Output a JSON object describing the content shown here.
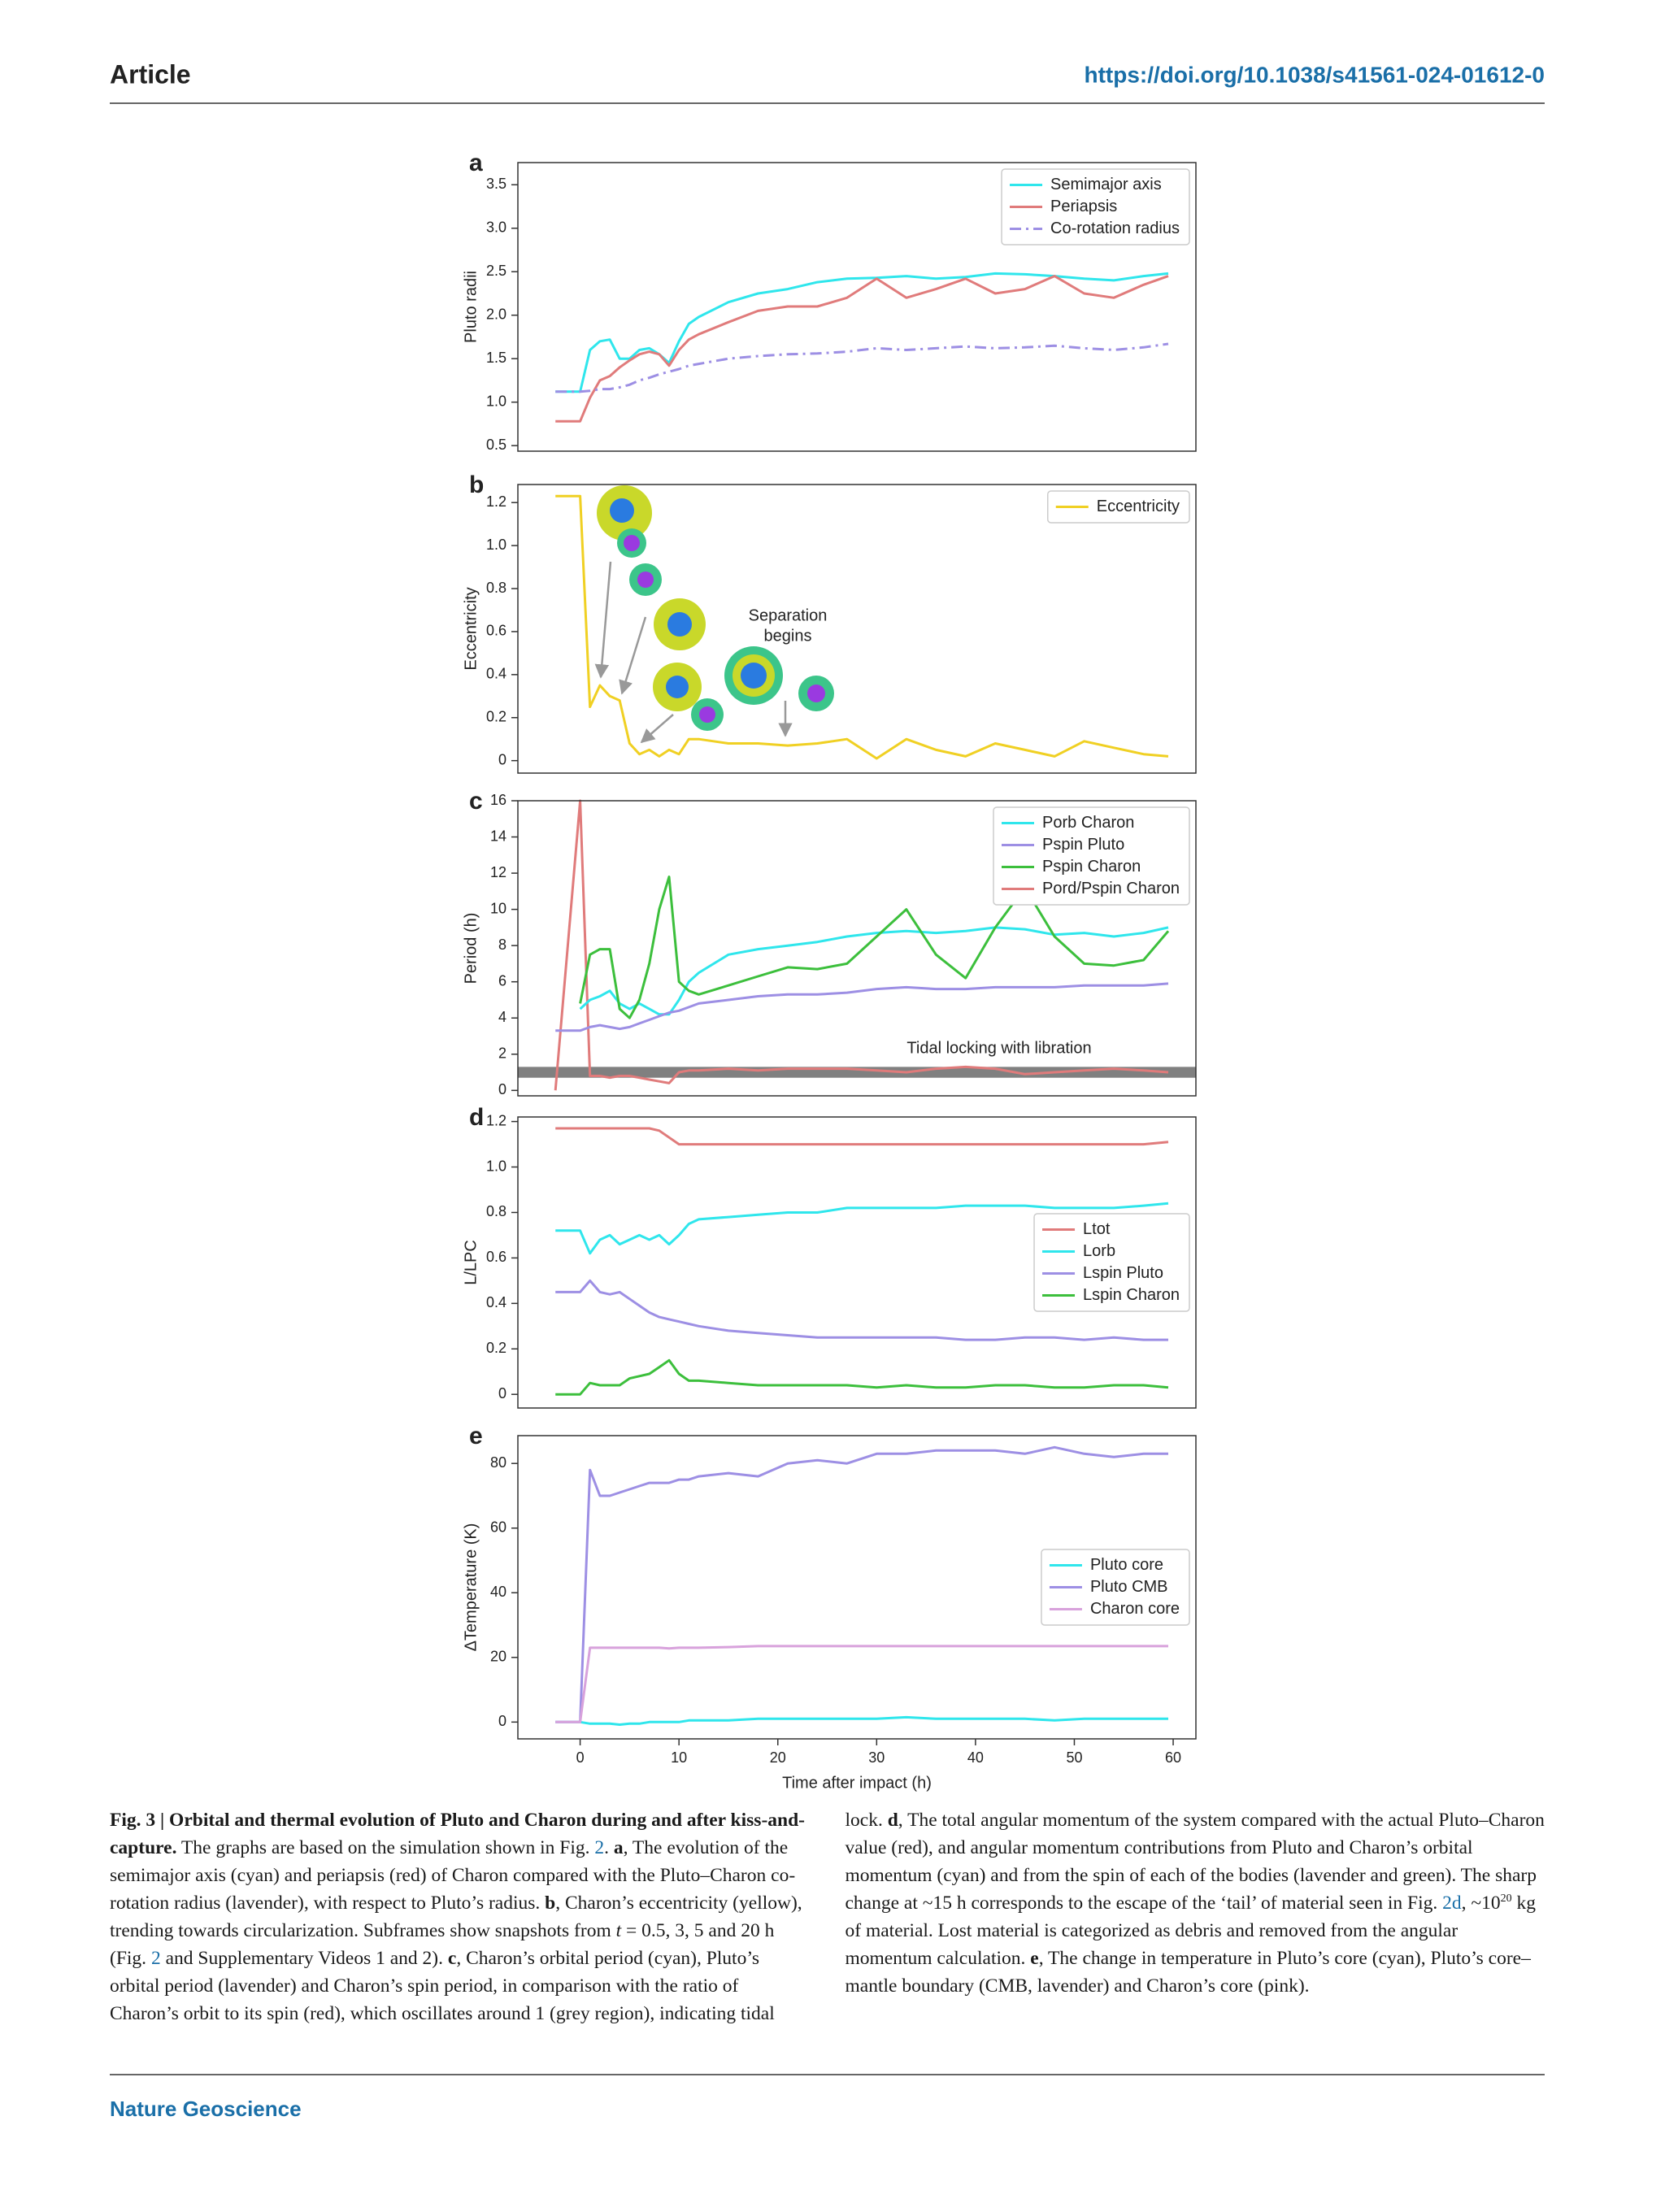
{
  "header": {
    "label": "Article",
    "doi": "https://doi.org/10.1038/s41561-024-01612-0"
  },
  "chart_data": [
    {
      "type": "line",
      "panel": "a",
      "ylabel": "Pluto radii",
      "legend": "upper right",
      "x": [
        -2.5,
        0,
        1,
        2,
        3,
        4,
        5,
        6,
        7,
        8,
        9,
        10,
        11,
        12,
        15,
        18,
        21,
        24,
        27,
        30,
        33,
        36,
        39,
        42,
        45,
        48,
        51,
        54,
        57,
        59.5
      ],
      "xlim": [
        -6.3,
        62.3
      ],
      "ylim": [
        0.436,
        3.755
      ],
      "yticks": [
        0.5,
        {
          "value": 1,
          "label": "1.0"
        },
        1.5,
        {
          "value": 2,
          "label": "2.0"
        },
        2.5,
        {
          "value": 3,
          "label": "3.0"
        },
        3.5
      ],
      "series": [
        {
          "name": "Semimajor axis",
          "color": "#2fe6ec",
          "values": [
            1.12,
            1.12,
            1.6,
            1.7,
            1.72,
            1.5,
            1.5,
            1.6,
            1.62,
            1.55,
            1.45,
            1.7,
            1.9,
            1.98,
            2.15,
            2.25,
            2.3,
            2.38,
            2.42,
            2.43,
            2.45,
            2.42,
            2.44,
            2.48,
            2.47,
            2.45,
            2.42,
            2.4,
            2.45,
            2.48
          ]
        },
        {
          "name": "Periapsis",
          "color": "#e07b7b",
          "values": [
            0.78,
            0.78,
            1.05,
            1.25,
            1.3,
            1.4,
            1.48,
            1.55,
            1.58,
            1.55,
            1.42,
            1.6,
            1.72,
            1.78,
            1.92,
            2.05,
            2.1,
            2.1,
            2.2,
            2.42,
            2.2,
            2.3,
            2.42,
            2.25,
            2.3,
            2.45,
            2.25,
            2.2,
            2.35,
            2.45
          ]
        },
        {
          "name": "Co-rotation radius",
          "color": "#9d8fe4",
          "dash": "dashdot",
          "values": [
            1.12,
            1.12,
            1.13,
            1.15,
            1.15,
            1.17,
            1.2,
            1.25,
            1.28,
            1.32,
            1.35,
            1.38,
            1.42,
            1.44,
            1.5,
            1.53,
            1.55,
            1.56,
            1.58,
            1.62,
            1.6,
            1.62,
            1.64,
            1.62,
            1.63,
            1.65,
            1.62,
            1.6,
            1.63,
            1.67
          ]
        }
      ]
    },
    {
      "type": "line",
      "panel": "b",
      "ylabel": "Eccentricity",
      "legend": "upper right",
      "annotations": [
        "Separation",
        "begins"
      ],
      "x": [
        -2.5,
        0,
        1,
        2,
        3,
        4,
        5,
        6,
        7,
        8,
        9,
        10,
        11,
        12,
        15,
        18,
        21,
        24,
        27,
        30,
        33,
        36,
        39,
        42,
        45,
        48,
        51,
        54,
        57,
        59.5
      ],
      "xlim": [
        -6.3,
        62.3
      ],
      "ylim": [
        -0.058,
        1.284
      ],
      "yticks": [
        0,
        0.2,
        0.4,
        0.6,
        0.8,
        {
          "value": 1,
          "label": "1.0"
        },
        1.2
      ],
      "series": [
        {
          "name": "Eccentricity",
          "color": "#f0d023",
          "values": [
            1.23,
            1.23,
            0.25,
            0.35,
            0.3,
            0.28,
            0.08,
            0.03,
            0.05,
            0.02,
            0.05,
            0.03,
            0.1,
            0.1,
            0.08,
            0.08,
            0.07,
            0.08,
            0.1,
            0.01,
            0.1,
            0.05,
            0.02,
            0.08,
            0.05,
            0.02,
            0.09,
            0.06,
            0.03,
            0.02
          ]
        }
      ]
    },
    {
      "type": "line",
      "panel": "c",
      "ylabel": "Period (h)",
      "legend": "upper right",
      "annotations": [
        "Tidal locking with libration"
      ],
      "band": [
        0.7,
        1.3
      ],
      "band_color": "#808080",
      "x": [
        -2.5,
        0,
        1,
        2,
        3,
        4,
        5,
        6,
        7,
        8,
        9,
        10,
        11,
        12,
        15,
        18,
        21,
        24,
        27,
        30,
        33,
        36,
        39,
        42,
        45,
        48,
        51,
        54,
        57,
        59.5
      ],
      "xlim": [
        -6.3,
        62.3
      ],
      "ylim": [
        -0.3,
        16
      ],
      "yticks": [
        0,
        2,
        4,
        6,
        8,
        10,
        12,
        14,
        16
      ],
      "series": [
        {
          "name": "Pord/Pspin Charon",
          "color": "#e07b7b",
          "values": [
            0,
            16,
            0.8,
            0.8,
            0.7,
            0.8,
            0.8,
            0.7,
            0.6,
            0.5,
            0.4,
            1.0,
            1.1,
            1.1,
            1.2,
            1.1,
            1.2,
            1.2,
            1.2,
            1.1,
            1.0,
            1.2,
            1.3,
            1.2,
            0.9,
            1.0,
            1.1,
            1.2,
            1.1,
            1.0
          ]
        },
        {
          "name": "Porb Charon",
          "color": "#2fe6ec",
          "values": [
            null,
            4.5,
            5,
            5.2,
            5.5,
            4.8,
            4.5,
            4.8,
            4.5,
            4.2,
            4.2,
            5,
            6,
            6.5,
            7.5,
            7.8,
            8,
            8.2,
            8.5,
            8.7,
            8.8,
            8.7,
            8.8,
            9,
            8.9,
            8.6,
            8.7,
            8.5,
            8.7,
            9
          ]
        },
        {
          "name": "Pspin Pluto",
          "color": "#9d8fe4",
          "values": [
            3.3,
            3.3,
            3.5,
            3.6,
            3.5,
            3.4,
            3.5,
            3.7,
            3.9,
            4.1,
            4.3,
            4.4,
            4.6,
            4.8,
            5,
            5.2,
            5.3,
            5.3,
            5.4,
            5.6,
            5.7,
            5.6,
            5.6,
            5.7,
            5.7,
            5.7,
            5.8,
            5.8,
            5.8,
            5.9
          ]
        },
        {
          "name": "Pspin Charon",
          "color": "#3cbf3c",
          "values": [
            null,
            4.8,
            7.5,
            7.8,
            7.8,
            4.5,
            4,
            5,
            7,
            10,
            11.8,
            6,
            5.5,
            5.3,
            5.8,
            6.3,
            6.8,
            6.7,
            7,
            8.5,
            10,
            7.5,
            6.2,
            9,
            11.2,
            8.5,
            7,
            6.9,
            7.2,
            8.8
          ]
        }
      ],
      "legend_order": [
        1,
        2,
        3,
        0
      ]
    },
    {
      "type": "line",
      "panel": "d",
      "ylabel": "L/LPC",
      "legend": "center right",
      "x": [
        -2.5,
        0,
        1,
        2,
        3,
        4,
        5,
        6,
        7,
        8,
        9,
        10,
        11,
        12,
        15,
        18,
        21,
        24,
        27,
        30,
        33,
        36,
        39,
        42,
        45,
        48,
        51,
        54,
        57,
        59.5
      ],
      "xlim": [
        -6.3,
        62.3
      ],
      "ylim": [
        -0.06,
        1.22
      ],
      "yticks": [
        0,
        0.2,
        0.4,
        0.6,
        0.8,
        {
          "value": 1,
          "label": "1.0"
        },
        1.2
      ],
      "series": [
        {
          "name": "Ltot",
          "color": "#e07b7b",
          "values": [
            1.17,
            1.17,
            1.17,
            1.17,
            1.17,
            1.17,
            1.17,
            1.17,
            1.17,
            1.16,
            1.13,
            1.1,
            1.1,
            1.1,
            1.1,
            1.1,
            1.1,
            1.1,
            1.1,
            1.1,
            1.1,
            1.1,
            1.1,
            1.1,
            1.1,
            1.1,
            1.1,
            1.1,
            1.1,
            1.11
          ]
        },
        {
          "name": "Lorb",
          "color": "#2fe6ec",
          "values": [
            0.72,
            0.72,
            0.62,
            0.68,
            0.7,
            0.66,
            0.68,
            0.7,
            0.68,
            0.7,
            0.66,
            0.7,
            0.75,
            0.77,
            0.78,
            0.79,
            0.8,
            0.8,
            0.82,
            0.82,
            0.82,
            0.82,
            0.83,
            0.83,
            0.83,
            0.82,
            0.82,
            0.82,
            0.83,
            0.84
          ]
        },
        {
          "name": "Lspin Pluto",
          "color": "#9d8fe4",
          "values": [
            0.45,
            0.45,
            0.5,
            0.45,
            0.44,
            0.45,
            0.42,
            0.39,
            0.36,
            0.34,
            0.33,
            0.32,
            0.31,
            0.3,
            0.28,
            0.27,
            0.26,
            0.25,
            0.25,
            0.25,
            0.25,
            0.25,
            0.24,
            0.24,
            0.25,
            0.25,
            0.24,
            0.25,
            0.24,
            0.24
          ]
        },
        {
          "name": "Lspin Charon",
          "color": "#3cbf3c",
          "values": [
            0,
            0,
            0.05,
            0.04,
            0.04,
            0.04,
            0.07,
            0.08,
            0.09,
            0.12,
            0.15,
            0.09,
            0.06,
            0.06,
            0.05,
            0.04,
            0.04,
            0.04,
            0.04,
            0.03,
            0.04,
            0.03,
            0.03,
            0.04,
            0.04,
            0.03,
            0.03,
            0.04,
            0.04,
            0.03
          ]
        }
      ]
    },
    {
      "type": "line",
      "panel": "e",
      "ylabel": "ΔTemperature (K)",
      "xlabel": "Time after impact (h)",
      "legend": "center right",
      "x": [
        -2.5,
        0,
        1,
        2,
        3,
        4,
        5,
        6,
        7,
        8,
        9,
        10,
        11,
        12,
        15,
        18,
        21,
        24,
        27,
        30,
        33,
        36,
        39,
        42,
        45,
        48,
        51,
        54,
        57,
        59.5
      ],
      "xlim": [
        -6.3,
        62.3
      ],
      "ylim": [
        -5.2,
        88.6
      ],
      "xticks": [
        0,
        10,
        20,
        30,
        40,
        50,
        60
      ],
      "yticks": [
        0,
        20,
        40,
        60,
        80
      ],
      "series": [
        {
          "name": "Pluto core",
          "color": "#2fe6ec",
          "values": [
            0,
            0,
            -0.5,
            -0.5,
            -0.5,
            -0.8,
            -0.5,
            -0.5,
            0,
            0,
            0,
            0,
            0.5,
            0.5,
            0.5,
            1,
            1,
            1,
            1,
            1,
            1.5,
            1,
            1,
            1,
            1,
            0.5,
            1,
            1,
            1,
            1
          ]
        },
        {
          "name": "Pluto CMB",
          "color": "#9d8fe4",
          "values": [
            0,
            0,
            78,
            70,
            70,
            71,
            72,
            73,
            74,
            74,
            74,
            75,
            75,
            76,
            77,
            76,
            80,
            81,
            80,
            83,
            83,
            84,
            84,
            84,
            83,
            85,
            83,
            82,
            83,
            83
          ]
        },
        {
          "name": "Charon core",
          "color": "#d8a2dc",
          "values": [
            0,
            0,
            23,
            23,
            23,
            23,
            23,
            23,
            23,
            23,
            22.8,
            23,
            23,
            23,
            23.2,
            23.5,
            23.5,
            23.5,
            23.5,
            23.5,
            23.5,
            23.5,
            23.5,
            23.5,
            23.5,
            23.5,
            23.5,
            23.5,
            23.5,
            23.5
          ]
        }
      ]
    }
  ],
  "caption": [
    {
      "text": "Fig. 3 | Orbital and thermal evolution of Pluto and Charon during and after kiss-and-capture.",
      "style": "bold"
    },
    {
      "text": " The graphs are based on the simulation shown in Fig. "
    },
    {
      "text": "2",
      "style": "link"
    },
    {
      "text": ". "
    },
    {
      "text": "a",
      "style": "bold"
    },
    {
      "text": ", The evolution of the semimajor axis (cyan) and periapsis (red) of Charon compared with the Pluto–Charon co-rotation radius (lavender), with respect to Pluto’s radius. "
    },
    {
      "text": "b",
      "style": "bold"
    },
    {
      "text": ", Charon’s eccentricity (yellow), trending towards circularization. Subframes show snapshots from "
    },
    {
      "text": "t",
      "style": "italic"
    },
    {
      "text": " = 0.5, 3, 5 and 20 h (Fig. "
    },
    {
      "text": "2",
      "style": "link"
    },
    {
      "text": " and Supplementary Videos 1 and 2). "
    },
    {
      "text": "c",
      "style": "bold"
    },
    {
      "text": ", Charon’s orbital period (cyan), Pluto’s orbital period (lavender) and Charon’s spin period, in comparison with the ratio of Charon’s orbit to its spin (red), which oscillates around 1 (grey region), indicating tidal lock. "
    },
    {
      "text": "d",
      "style": "bold"
    },
    {
      "text": ", The total angular momentum of the system compared with the actual Pluto–Charon value (red), and angular momentum contributions from Pluto and Charon’s orbital momentum (cyan) and from the spin of each of the bodies (lavender and green). The sharp change at ~15 h corresponds to the escape of the ‘tail’ of material seen in Fig. "
    },
    {
      "text": "2d",
      "style": "link"
    },
    {
      "text": ", ~10"
    },
    {
      "text": "20",
      "style": "sup"
    },
    {
      "text": " kg of material. Lost material is categorized as debris and removed from the angular momentum calculation. "
    },
    {
      "text": "e",
      "style": "bold"
    },
    {
      "text": ", The change in temperature in Pluto’s core (cyan), Pluto’s core–mantle boundary (CMB, lavender) and Charon’s core (pink)."
    }
  ],
  "footer": {
    "journal": "Nature Geoscience"
  }
}
